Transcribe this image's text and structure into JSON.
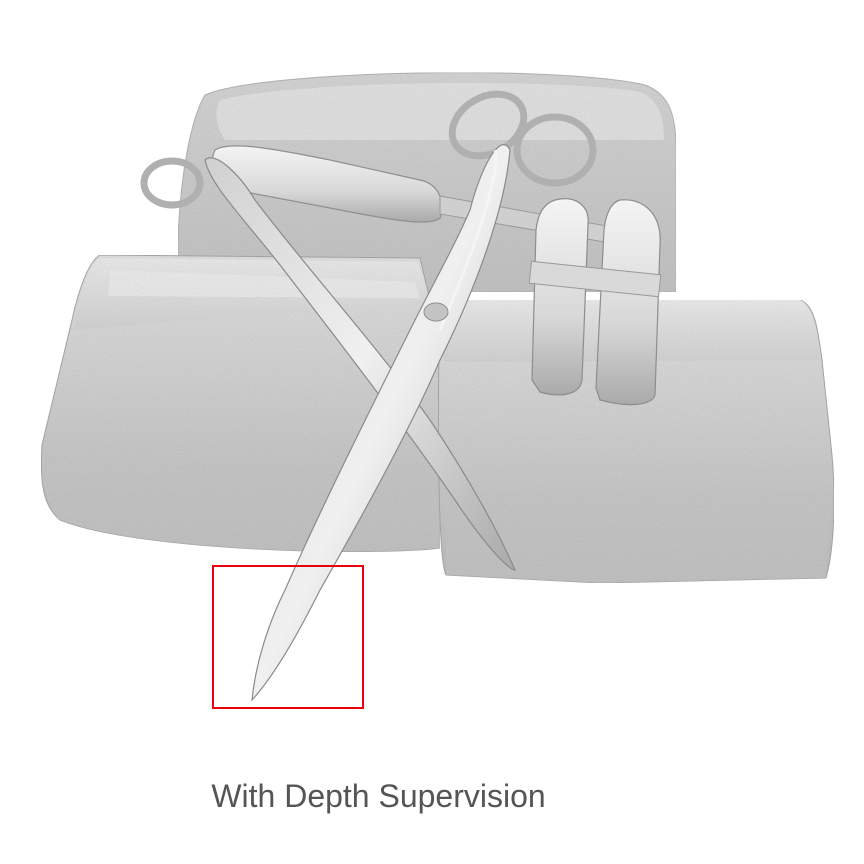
{
  "figure": {
    "caption": "With Depth Supervision",
    "highlight_color": "#e8000b",
    "mesh_shading": "gray-rendered surface reconstruction"
  }
}
